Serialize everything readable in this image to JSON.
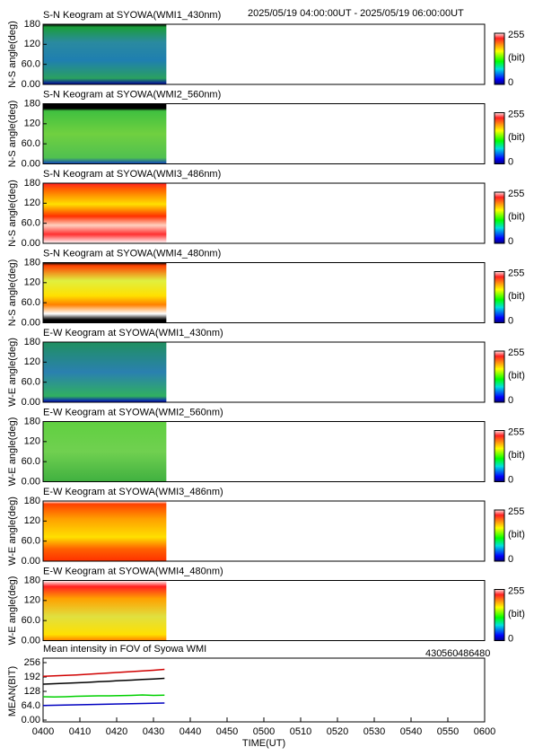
{
  "time_range": "2025/05/19 04:00:00UT - 2025/05/19 06:00:00UT",
  "chart_data": [
    {
      "type": "keogram",
      "title": "S-N Keogram at SYOWA(WMI1_430nm)",
      "ylabel": "N-S angle(deg)",
      "ylim": [
        0,
        180
      ],
      "yticks": [
        {
          "value": 0,
          "label": "0.00"
        },
        {
          "value": 60,
          "label": "60.0"
        },
        120,
        180
      ],
      "clim": [
        0,
        255
      ],
      "clabel": "(bit)"
    },
    {
      "type": "keogram",
      "title": "S-N Keogram at SYOWA(WMI2_560nm)",
      "ylabel": "N-S angle(deg)",
      "ylim": [
        0,
        180
      ],
      "yticks": [
        {
          "value": 0,
          "label": "0.00"
        },
        {
          "value": 60,
          "label": "60.0"
        },
        120,
        180
      ],
      "clim": [
        0,
        255
      ],
      "clabel": "(bit)"
    },
    {
      "type": "keogram",
      "title": "S-N Keogram at SYOWA(WMI3_486nm)",
      "ylabel": "N-S angle(deg)",
      "ylim": [
        0,
        180
      ],
      "yticks": [
        {
          "value": 0,
          "label": "0.00"
        },
        {
          "value": 60,
          "label": "60.0"
        },
        120,
        180
      ],
      "clim": [
        0,
        255
      ],
      "clabel": "(bit)"
    },
    {
      "type": "keogram",
      "title": "S-N Keogram at SYOWA(WMI4_480nm)",
      "ylabel": "N-S angle(deg)",
      "ylim": [
        0,
        180
      ],
      "yticks": [
        {
          "value": 0,
          "label": "0.00"
        },
        {
          "value": 60,
          "label": "60.0"
        },
        120,
        180
      ],
      "clim": [
        0,
        255
      ],
      "clabel": "(bit)"
    },
    {
      "type": "keogram",
      "title": "E-W Keogram at SYOWA(WMI1_430nm)",
      "ylabel": "W-E angle(deg)",
      "ylim": [
        0,
        180
      ],
      "yticks": [
        {
          "value": 0,
          "label": "0.00"
        },
        {
          "value": 60,
          "label": "60.0"
        },
        120,
        180
      ],
      "clim": [
        0,
        255
      ],
      "clabel": "(bit)"
    },
    {
      "type": "keogram",
      "title": "E-W Keogram at SYOWA(WMI2_560nm)",
      "ylabel": "W-E angle(deg)",
      "ylim": [
        0,
        180
      ],
      "yticks": [
        {
          "value": 0,
          "label": "0.00"
        },
        {
          "value": 60,
          "label": "60.0"
        },
        120,
        180
      ],
      "clim": [
        0,
        255
      ],
      "clabel": "(bit)"
    },
    {
      "type": "keogram",
      "title": "E-W Keogram at SYOWA(WMI3_486nm)",
      "ylabel": "W-E angle(deg)",
      "ylim": [
        0,
        180
      ],
      "yticks": [
        {
          "value": 0,
          "label": "0.00"
        },
        {
          "value": 60,
          "label": "60.0"
        },
        120,
        180
      ],
      "clim": [
        0,
        255
      ],
      "clabel": "(bit)"
    },
    {
      "type": "keogram",
      "title": "E-W Keogram at SYOWA(WMI4_480nm)",
      "ylabel": "W-E angle(deg)",
      "ylim": [
        0,
        180
      ],
      "yticks": [
        {
          "value": 0,
          "label": "0.00"
        },
        {
          "value": 60,
          "label": "60.0"
        },
        120,
        180
      ],
      "clim": [
        0,
        255
      ],
      "clabel": "(bit)"
    },
    {
      "type": "line",
      "title": "Mean intensity in FOV of Syowa WMI",
      "ylabel": "MEAN(BIT)",
      "xlabel": "TIME(UT)",
      "xlim": [
        0,
        120
      ],
      "xticks": [
        {
          "value": 0,
          "label": "0400"
        },
        {
          "value": 10,
          "label": "0410"
        },
        {
          "value": 20,
          "label": "0420"
        },
        {
          "value": 30,
          "label": "0430"
        },
        {
          "value": 40,
          "label": "0440"
        },
        {
          "value": 50,
          "label": "0450"
        },
        {
          "value": 60,
          "label": "0500"
        },
        {
          "value": 70,
          "label": "0510"
        },
        {
          "value": 80,
          "label": "0520"
        },
        {
          "value": 90,
          "label": "0530"
        },
        {
          "value": 100,
          "label": "0540"
        },
        {
          "value": 110,
          "label": "0550"
        },
        {
          "value": 120,
          "label": "0600"
        }
      ],
      "ylim": [
        0,
        256
      ],
      "yticks": [
        {
          "value": 0,
          "label": "0.00"
        },
        {
          "value": 64,
          "label": "64.0"
        },
        128,
        192,
        256
      ],
      "x": [
        0,
        3,
        6,
        9,
        12,
        15,
        18,
        21,
        24,
        27,
        30,
        33
      ],
      "series": [
        {
          "name": "430",
          "color": "#0000c0",
          "values": [
            65,
            66,
            67,
            68,
            69,
            70,
            71,
            72,
            73,
            74,
            75,
            76
          ]
        },
        {
          "name": "560",
          "color": "#00d000",
          "values": [
            104,
            103,
            104,
            106,
            107,
            108,
            108,
            109,
            110,
            112,
            110,
            111
          ]
        },
        {
          "name": "486",
          "color": "#d00000",
          "values": [
            195,
            197,
            199,
            201,
            204,
            207,
            210,
            213,
            216,
            219,
            222,
            226
          ]
        },
        {
          "name": "480",
          "color": "#000000",
          "values": [
            160,
            162,
            164,
            166,
            168,
            171,
            173,
            176,
            178,
            181,
            183,
            186
          ]
        }
      ]
    }
  ]
}
